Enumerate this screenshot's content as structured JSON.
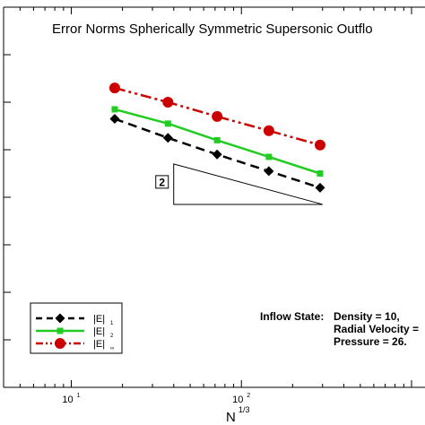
{
  "chart_data": {
    "type": "line",
    "title": "Error Norms Spherically Symmetric Supersonic Outflo",
    "xlabel": "N",
    "xlabel_sup": "1/3",
    "x_scale": "log",
    "xlim": [
      4,
      1200
    ],
    "ylim": [
      0,
      8
    ],
    "x_ticks": [
      {
        "base": "10",
        "exp": "1",
        "value": 10
      },
      {
        "base": "10",
        "exp": "2",
        "value": 100
      }
    ],
    "grid": false,
    "legend_position": "bottom-left",
    "series": [
      {
        "name": "|E|",
        "subscript": "1",
        "color": "#000000",
        "marker": "diamond",
        "line_style": "dashed",
        "x": [
          18,
          37,
          72,
          145,
          290
        ],
        "y": [
          5.65,
          5.25,
          4.9,
          4.55,
          4.2
        ]
      },
      {
        "name": "|E|",
        "subscript": "2",
        "color": "#22cc22",
        "marker": "square",
        "line_style": "solid",
        "x": [
          18,
          37,
          72,
          145,
          290
        ],
        "y": [
          5.85,
          5.55,
          5.2,
          4.85,
          4.5
        ]
      },
      {
        "name": "|E|",
        "subscript": "∞",
        "color": "#cc0000",
        "marker": "circle",
        "line_style": "dash-dot-dot",
        "x": [
          18,
          37,
          72,
          145,
          290
        ],
        "y": [
          6.3,
          6.0,
          5.7,
          5.4,
          5.1
        ]
      }
    ],
    "slope_triangle": {
      "label": "2",
      "x": [
        40,
        300
      ],
      "y": [
        4.7,
        3.85
      ]
    },
    "annotation": {
      "lines": [
        {
          "key": "Inflow State:",
          "value": "Density = 10,"
        },
        {
          "key": "",
          "value": "Radial Velocity ="
        },
        {
          "key": "",
          "value": "Pressure = 26."
        }
      ]
    }
  }
}
